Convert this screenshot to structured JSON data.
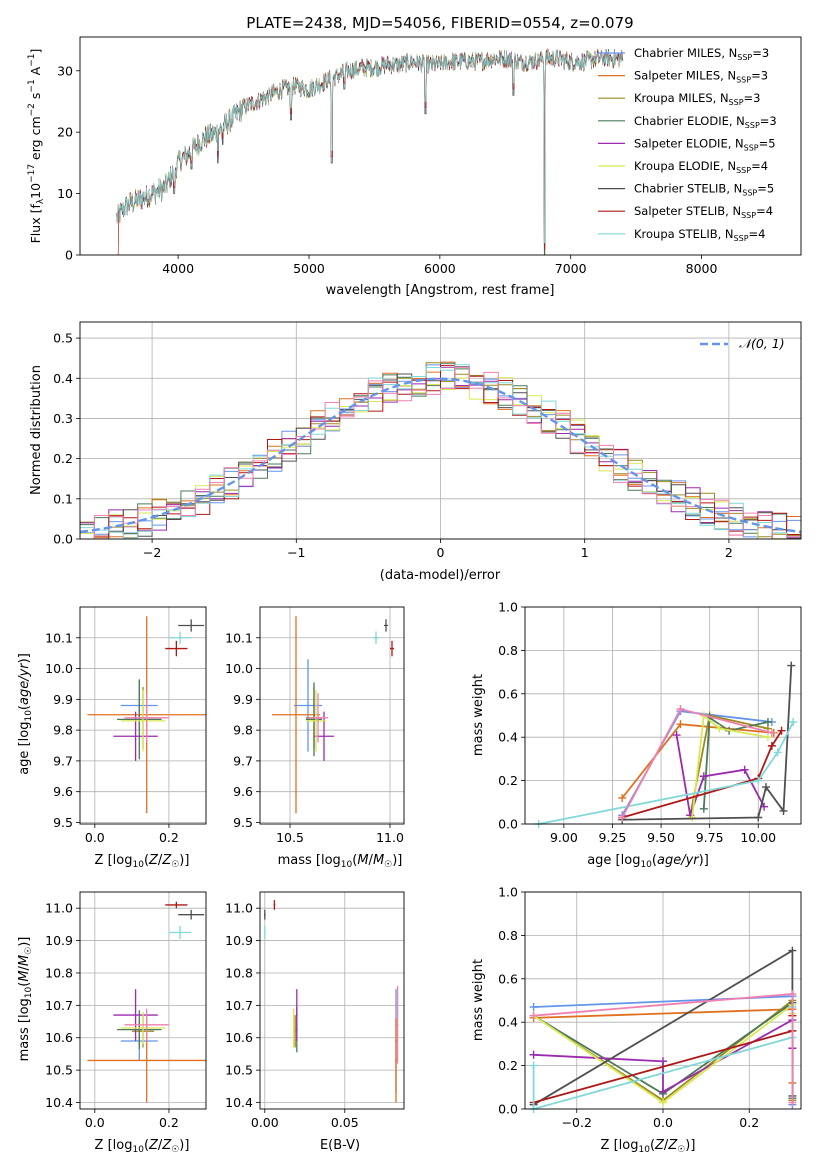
{
  "chart_data": [
    {
      "id": "spectrum",
      "type": "line",
      "title": "PLATE=2438, MJD=54056, FIBERID=0554, z=0.079",
      "xlabel": "wavelength [Angstrom, rest frame]",
      "ylabel": "Flux [f_λ 10^-17 erg cm^-2 s^-1 A^-1]",
      "xlim": [
        3250,
        8760
      ],
      "ylim": [
        0,
        35.5
      ],
      "xticks": [
        "4000",
        "5000",
        "6000",
        "7000",
        "8000"
      ],
      "yticks": [
        "0",
        "10",
        "20",
        "30"
      ],
      "grid": false,
      "legend": "top-right",
      "series": [
        {
          "name": "Chabrier MILES, N_SSP=3",
          "color": "#6495ED"
        },
        {
          "name": "Salpeter MILES, N_SSP=3",
          "color": "#E07020"
        },
        {
          "name": "Kroupa MILES, N_SSP=3",
          "color": "#A08A20"
        },
        {
          "name": "Chabrier ELODIE, N_SSP=3",
          "color": "#4A7A5A"
        },
        {
          "name": "Salpeter ELODIE, N_SSP=5",
          "color": "#9B2BAF"
        },
        {
          "name": "Kroupa ELODIE, N_SSP=4",
          "color": "#D8E855"
        },
        {
          "name": "Chabrier STELIB, N_SSP=5",
          "color": "#505050"
        },
        {
          "name": "Salpeter STELIB, N_SSP=4",
          "color": "#B01818"
        },
        {
          "name": "Kroupa STELIB, N_SSP=4",
          "color": "#80D8D8"
        }
      ],
      "continuum": {
        "x": [
          3530,
          3600,
          3700,
          3800,
          3900,
          4000,
          4100,
          4200,
          4300,
          4400,
          4500,
          4600,
          4700,
          4800,
          4900,
          5000,
          5100,
          5200,
          5300,
          5400,
          5500,
          5600,
          5700,
          5800,
          5900,
          6000,
          6100,
          6200,
          6300,
          6400,
          6500,
          6600,
          6700,
          6800,
          6900,
          7000,
          7100,
          7200,
          7300,
          7400
        ],
        "y": [
          6,
          8,
          9,
          10,
          11,
          15,
          17,
          19,
          20,
          22,
          24,
          25,
          26,
          27,
          27.5,
          27,
          28,
          29,
          30,
          30.5,
          30.5,
          31,
          31,
          31.5,
          31,
          31,
          31.5,
          31.5,
          31.5,
          32,
          32,
          31.5,
          31.5,
          32,
          32,
          31.5,
          31.5,
          32,
          32,
          32
        ]
      },
      "dips": [
        [
          3934,
          12
        ],
        [
          3969,
          10
        ],
        [
          4102,
          14
        ],
        [
          4304,
          15
        ],
        [
          4340,
          18
        ],
        [
          4861,
          22
        ],
        [
          5175,
          15
        ],
        [
          5270,
          27
        ],
        [
          5890,
          23
        ],
        [
          6563,
          26
        ],
        [
          6800,
          0
        ],
        [
          7420,
          0
        ]
      ]
    },
    {
      "id": "residuals",
      "type": "bar",
      "xlabel": "(data-model)/error",
      "ylabel": "Normed distribution",
      "xlim": [
        -2.5,
        2.5
      ],
      "ylim": [
        0,
        0.54
      ],
      "xticks": [
        "−2",
        "−1",
        "0",
        "1",
        "2"
      ],
      "yticks": [
        "0.0",
        "0.1",
        "0.2",
        "0.3",
        "0.4",
        "0.5"
      ],
      "grid": true,
      "legend": "top-right",
      "legend_label": "𝒩(0, 1)",
      "bin_width": 0.1,
      "series_colors": [
        "#6495ED",
        "#E07020",
        "#A08A20",
        "#4A7A5A",
        "#9B2BAF",
        "#D8E855",
        "#505050",
        "#B01818",
        "#80D8D8",
        "#F080B0"
      ],
      "gaussian_color": "#6495ED"
    },
    {
      "id": "age_vs_Z",
      "type": "scatter",
      "xlabel": "Z [log10(Z/Z☉)]",
      "ylabel": "age [log10(age/yr)]",
      "xlim": [
        -0.04,
        0.3
      ],
      "ylim": [
        9.495,
        10.2
      ],
      "xticks": [
        "0.0",
        "0.2"
      ],
      "xtick_values": [
        0.0,
        0.2
      ],
      "yticks": [
        "9.5",
        "9.6",
        "9.7",
        "9.8",
        "9.9",
        "10.0",
        "10.1"
      ],
      "ytick_values": [
        9.5,
        9.6,
        9.7,
        9.8,
        9.9,
        10.0,
        10.1
      ],
      "points": [
        {
          "x": 0.12,
          "y": 9.88,
          "xerr": 0.05,
          "yerr": 0.08,
          "color": "#6495ED"
        },
        {
          "x": 0.14,
          "y": 9.85,
          "xerr": 0.16,
          "yerr": 0.32,
          "color": "#E07020"
        },
        {
          "x": 0.13,
          "y": 9.84,
          "xerr": 0.03,
          "yerr": 0.1,
          "color": "#A08A20"
        },
        {
          "x": 0.12,
          "y": 9.835,
          "xerr": 0.06,
          "yerr": 0.13,
          "color": "#4A7A5A"
        },
        {
          "x": 0.11,
          "y": 9.78,
          "xerr": 0.06,
          "yerr": 0.08,
          "color": "#9B2BAF"
        },
        {
          "x": 0.13,
          "y": 9.83,
          "xerr": 0.06,
          "yerr": 0.1,
          "color": "#D8E855"
        },
        {
          "x": 0.26,
          "y": 10.14,
          "xerr": 0.035,
          "yerr": 0.02,
          "color": "#505050"
        },
        {
          "x": 0.22,
          "y": 10.065,
          "xerr": 0.03,
          "yerr": 0.025,
          "color": "#B01818"
        },
        {
          "x": 0.23,
          "y": 10.1,
          "xerr": 0.03,
          "yerr": 0.02,
          "color": "#80D8D8"
        },
        {
          "x": 0.14,
          "y": 9.84,
          "xerr": 0.06,
          "yerr": 0.08,
          "color": "#F080B0"
        }
      ]
    },
    {
      "id": "age_vs_mass",
      "type": "scatter",
      "xlabel": "mass [log10(M/M☉)]",
      "ylabel": "",
      "xlim": [
        10.35,
        11.07
      ],
      "ylim": [
        9.495,
        10.2
      ],
      "xticks": [
        "10.5",
        "11.0"
      ],
      "xtick_values": [
        10.5,
        11.0
      ],
      "yticks": [
        "9.5",
        "9.6",
        "9.7",
        "9.8",
        "9.9",
        "10.0",
        "10.1"
      ],
      "ytick_values": [
        9.5,
        9.6,
        9.7,
        9.8,
        9.9,
        10.0,
        10.1
      ],
      "points": [
        {
          "x": 10.59,
          "y": 9.88,
          "xerr": 0.07,
          "yerr": 0.15,
          "color": "#6495ED"
        },
        {
          "x": 10.53,
          "y": 9.85,
          "xerr": 0.12,
          "yerr": 0.32,
          "color": "#E07020"
        },
        {
          "x": 10.62,
          "y": 9.84,
          "xerr": 0.04,
          "yerr": 0.1,
          "color": "#A08A20"
        },
        {
          "x": 10.62,
          "y": 9.835,
          "xerr": 0.04,
          "yerr": 0.12,
          "color": "#4A7A5A"
        },
        {
          "x": 10.67,
          "y": 9.78,
          "xerr": 0.05,
          "yerr": 0.08,
          "color": "#9B2BAF"
        },
        {
          "x": 10.63,
          "y": 9.83,
          "xerr": 0.05,
          "yerr": 0.1,
          "color": "#D8E855"
        },
        {
          "x": 10.98,
          "y": 10.14,
          "xerr": 0.01,
          "yerr": 0.02,
          "color": "#505050"
        },
        {
          "x": 11.01,
          "y": 10.065,
          "xerr": 0.01,
          "yerr": 0.025,
          "color": "#B01818"
        },
        {
          "x": 10.93,
          "y": 10.1,
          "xerr": 0.015,
          "yerr": 0.02,
          "color": "#80D8D8"
        },
        {
          "x": 10.64,
          "y": 9.84,
          "xerr": 0.05,
          "yerr": 0.08,
          "color": "#F080B0"
        }
      ]
    },
    {
      "id": "mass_vs_Z",
      "type": "scatter",
      "xlabel": "Z [log10(Z/Z☉)]",
      "ylabel": "mass [log10(M/M☉)]",
      "xlim": [
        -0.04,
        0.3
      ],
      "ylim": [
        10.38,
        11.05
      ],
      "xticks": [
        "0.0",
        "0.2"
      ],
      "xtick_values": [
        0.0,
        0.2
      ],
      "yticks": [
        "10.4",
        "10.5",
        "10.6",
        "10.7",
        "10.8",
        "10.9",
        "11.0"
      ],
      "ytick_values": [
        10.4,
        10.5,
        10.6,
        10.7,
        10.8,
        10.9,
        11.0
      ],
      "points": [
        {
          "x": 0.12,
          "y": 10.59,
          "xerr": 0.05,
          "yerr": 0.06,
          "color": "#6495ED"
        },
        {
          "x": 0.14,
          "y": 10.53,
          "xerr": 0.16,
          "yerr": 0.13,
          "color": "#E07020"
        },
        {
          "x": 0.13,
          "y": 10.62,
          "xerr": 0.03,
          "yerr": 0.05,
          "color": "#A08A20"
        },
        {
          "x": 0.12,
          "y": 10.625,
          "xerr": 0.06,
          "yerr": 0.06,
          "color": "#4A7A5A"
        },
        {
          "x": 0.11,
          "y": 10.67,
          "xerr": 0.06,
          "yerr": 0.08,
          "color": "#9B2BAF"
        },
        {
          "x": 0.13,
          "y": 10.63,
          "xerr": 0.06,
          "yerr": 0.05,
          "color": "#D8E855"
        },
        {
          "x": 0.26,
          "y": 10.98,
          "xerr": 0.035,
          "yerr": 0.015,
          "color": "#505050"
        },
        {
          "x": 0.22,
          "y": 11.01,
          "xerr": 0.03,
          "yerr": 0.01,
          "color": "#B01818"
        },
        {
          "x": 0.23,
          "y": 10.925,
          "xerr": 0.03,
          "yerr": 0.02,
          "color": "#80D8D8"
        },
        {
          "x": 0.14,
          "y": 10.64,
          "xerr": 0.06,
          "yerr": 0.05,
          "color": "#F080B0"
        }
      ]
    },
    {
      "id": "mass_vs_EBV",
      "type": "scatter",
      "xlabel": "E(B-V)",
      "ylabel": "",
      "xlim": [
        -0.003,
        0.087
      ],
      "ylim": [
        10.38,
        11.05
      ],
      "xticks": [
        "0.00",
        "0.05"
      ],
      "xtick_values": [
        0.0,
        0.05
      ],
      "yticks": [
        "10.4",
        "10.5",
        "10.6",
        "10.7",
        "10.8",
        "10.9",
        "11.0"
      ],
      "ytick_values": [
        10.4,
        10.5,
        10.6,
        10.7,
        10.8,
        10.9,
        11.0
      ],
      "points": [
        {
          "x": 0.082,
          "y": 10.59,
          "xerr": 0.0005,
          "yerr": 0.16,
          "color": "#6495ED"
        },
        {
          "x": 0.082,
          "y": 10.53,
          "xerr": 0.0005,
          "yerr": 0.13,
          "color": "#E07020"
        },
        {
          "x": 0.019,
          "y": 10.62,
          "xerr": 0.0005,
          "yerr": 0.05,
          "color": "#A08A20"
        },
        {
          "x": 0.02,
          "y": 10.625,
          "xerr": 0.0005,
          "yerr": 0.07,
          "color": "#4A7A5A"
        },
        {
          "x": 0.02,
          "y": 10.67,
          "xerr": 0.0005,
          "yerr": 0.08,
          "color": "#9B2BAF"
        },
        {
          "x": 0.018,
          "y": 10.63,
          "xerr": 0.0005,
          "yerr": 0.06,
          "color": "#D8E855"
        },
        {
          "x": 0.0,
          "y": 10.98,
          "xerr": 0.0005,
          "yerr": 0.015,
          "color": "#505050"
        },
        {
          "x": 0.006,
          "y": 11.01,
          "xerr": 0.0005,
          "yerr": 0.015,
          "color": "#B01818"
        },
        {
          "x": 0.0,
          "y": 10.925,
          "xerr": 0.0005,
          "yerr": 0.02,
          "color": "#80D8D8"
        },
        {
          "x": 0.083,
          "y": 10.64,
          "xerr": 0.0005,
          "yerr": 0.12,
          "color": "#F080B0"
        }
      ]
    },
    {
      "id": "weight_vs_age",
      "type": "line",
      "xlabel": "age [log10(age/yr)]",
      "ylabel": "mass weight",
      "xlim": [
        8.8,
        10.22
      ],
      "ylim": [
        0,
        1.0
      ],
      "xticks": [
        "9.00",
        "9.25",
        "9.50",
        "9.75",
        "10.00"
      ],
      "xtick_values": [
        9.0,
        9.25,
        9.5,
        9.75,
        10.0
      ],
      "yticks": [
        "0.0",
        "0.2",
        "0.4",
        "0.6",
        "0.8",
        "1.0"
      ],
      "ytick_values": [
        0,
        0.2,
        0.4,
        0.6,
        0.8,
        1.0
      ],
      "series": [
        {
          "color": "#6495ED",
          "x": [
            9.3,
            9.6,
            10.07
          ],
          "y": [
            0.04,
            0.52,
            0.47
          ]
        },
        {
          "color": "#E07020",
          "x": [
            9.3,
            9.6,
            10.08
          ],
          "y": [
            0.12,
            0.46,
            0.42
          ]
        },
        {
          "color": "#A08A20",
          "x": [
            9.65,
            9.75,
            10.05
          ],
          "y": [
            0.04,
            0.5,
            0.44
          ]
        },
        {
          "color": "#4A7A5A",
          "x": [
            9.72,
            9.75,
            9.85,
            10.05
          ],
          "y": [
            0.07,
            0.49,
            0.43,
            0.47
          ]
        },
        {
          "color": "#9B2BAF",
          "x": [
            9.58,
            9.65,
            9.72,
            9.93,
            10.03
          ],
          "y": [
            0.41,
            0.04,
            0.22,
            0.25,
            0.08
          ]
        },
        {
          "color": "#D8E855",
          "x": [
            9.66,
            9.72,
            9.8,
            10.05
          ],
          "y": [
            0.03,
            0.5,
            0.44,
            0.4
          ]
        },
        {
          "color": "#505050",
          "x": [
            9.3,
            10.0,
            10.04,
            10.13,
            10.17
          ],
          "y": [
            0.02,
            0.03,
            0.17,
            0.06,
            0.73
          ]
        },
        {
          "color": "#B01818",
          "x": [
            9.3,
            10.0,
            10.07,
            10.12
          ],
          "y": [
            0.03,
            0.21,
            0.36,
            0.43
          ]
        },
        {
          "color": "#80D8D8",
          "x": [
            8.87,
            10.0,
            10.1,
            10.18
          ],
          "y": [
            0.0,
            0.2,
            0.33,
            0.47
          ]
        },
        {
          "color": "#F080B0",
          "x": [
            9.3,
            9.6,
            10.07
          ],
          "y": [
            0.03,
            0.53,
            0.42
          ]
        }
      ]
    },
    {
      "id": "weight_vs_Z",
      "type": "line",
      "xlabel": "Z [log10(Z/Z☉)]",
      "ylabel": "mass weight",
      "xlim": [
        -0.32,
        0.32
      ],
      "ylim": [
        0,
        1.0
      ],
      "xticks": [
        "−0.2",
        "0.0",
        "0.2"
      ],
      "xtick_values": [
        -0.2,
        0.0,
        0.2
      ],
      "yticks": [
        "0.0",
        "0.2",
        "0.4",
        "0.6",
        "0.8",
        "1.0"
      ],
      "ytick_values": [
        0,
        0.2,
        0.4,
        0.6,
        0.8,
        1.0
      ],
      "series": [
        {
          "color": "#6495ED",
          "x": [
            -0.3,
            0.3,
            0.3
          ],
          "y": [
            0.47,
            0.52,
            0.02
          ]
        },
        {
          "color": "#E07020",
          "x": [
            -0.3,
            0.3,
            0.3
          ],
          "y": [
            0.42,
            0.46,
            0.12
          ]
        },
        {
          "color": "#A08A20",
          "x": [
            -0.3,
            0.0,
            0.3,
            0.3
          ],
          "y": [
            0.43,
            0.04,
            0.5,
            0.04
          ]
        },
        {
          "color": "#4A7A5A",
          "x": [
            -0.3,
            0.0,
            0.3,
            0.3
          ],
          "y": [
            0.43,
            0.07,
            0.49,
            0.05
          ]
        },
        {
          "color": "#9B2BAF",
          "x": [
            -0.3,
            0.0,
            0.0,
            0.3,
            0.3
          ],
          "y": [
            0.25,
            0.22,
            0.08,
            0.41,
            0.28
          ]
        },
        {
          "color": "#D8E855",
          "x": [
            -0.3,
            0.0,
            0.3,
            0.3
          ],
          "y": [
            0.43,
            0.03,
            0.48,
            0.44
          ]
        },
        {
          "color": "#505050",
          "x": [
            -0.3,
            0.3,
            0.3
          ],
          "y": [
            0.02,
            0.73,
            0.06
          ]
        },
        {
          "color": "#B01818",
          "x": [
            -0.3,
            0.3,
            0.3
          ],
          "y": [
            0.03,
            0.36,
            0.43
          ]
        },
        {
          "color": "#80D8D8",
          "x": [
            -0.3,
            -0.3,
            0.3,
            0.3
          ],
          "y": [
            0.2,
            0.0,
            0.33,
            0.47
          ]
        },
        {
          "color": "#F080B0",
          "x": [
            -0.3,
            0.3,
            0.3
          ],
          "y": [
            0.43,
            0.53,
            0.03
          ]
        }
      ]
    }
  ]
}
